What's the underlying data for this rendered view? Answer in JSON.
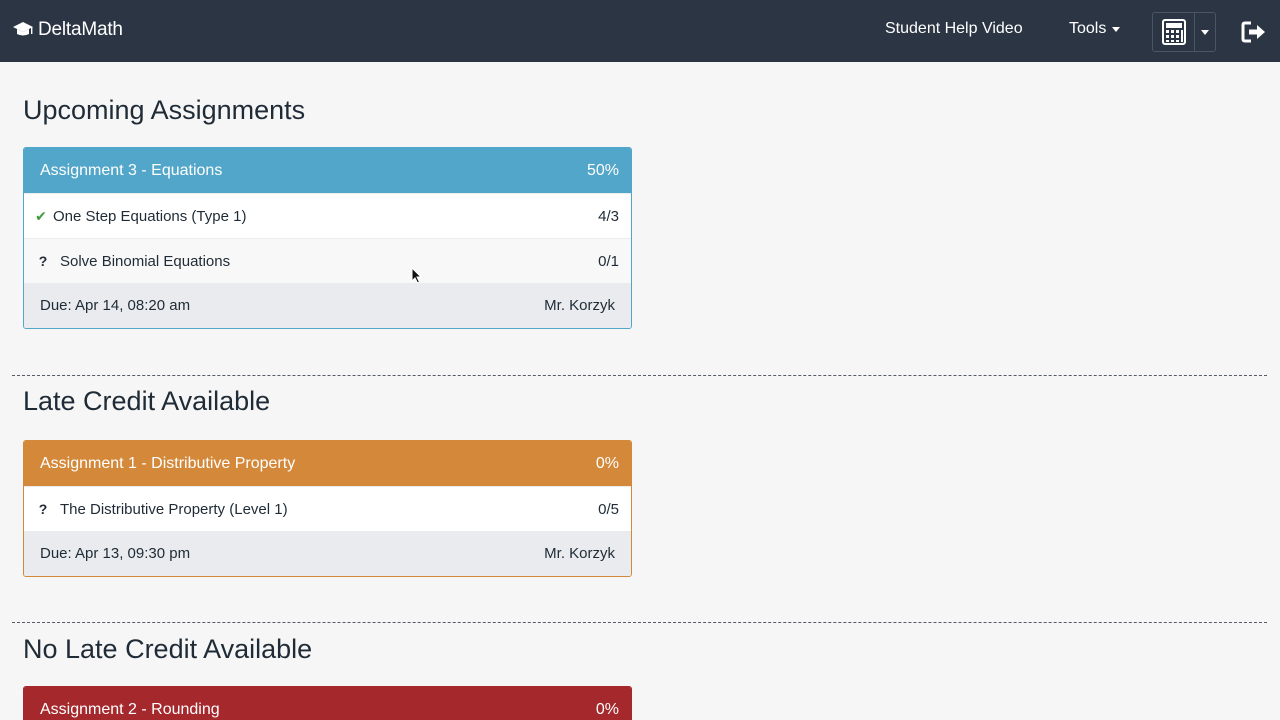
{
  "navbar": {
    "brand": "DeltaMath",
    "help_link": "Student Help Video",
    "tools_label": "Tools",
    "calculator_icon": "calculator-icon",
    "logout_icon": "logout-icon"
  },
  "sections": [
    {
      "title": "Upcoming Assignments",
      "color": "#52a6c9",
      "cards": [
        {
          "name": "Assignment 3 - Equations",
          "percent": "50%",
          "rows": [
            {
              "status": "check",
              "label": "One Step Equations (Type 1)",
              "score": "4/3"
            },
            {
              "status": "question",
              "label": "Solve Binomial Equations",
              "score": "0/1"
            }
          ],
          "due": "Due: Apr 14, 08:20 am",
          "teacher": "Mr. Korzyk"
        }
      ]
    },
    {
      "title": "Late Credit Available",
      "color": "#d4893a",
      "cards": [
        {
          "name": "Assignment 1 - Distributive Property",
          "percent": "0%",
          "rows": [
            {
              "status": "question",
              "label": "The Distributive Property (Level 1)",
              "score": "0/5"
            }
          ],
          "due": "Due: Apr 13, 09:30 pm",
          "teacher": "Mr. Korzyk"
        }
      ]
    },
    {
      "title": "No Late Credit Available",
      "color": "#a4282c",
      "cards": [
        {
          "name": "Assignment 2 - Rounding",
          "percent": "0%"
        }
      ]
    }
  ],
  "glyphs": {
    "check": "✔",
    "question": "?"
  }
}
